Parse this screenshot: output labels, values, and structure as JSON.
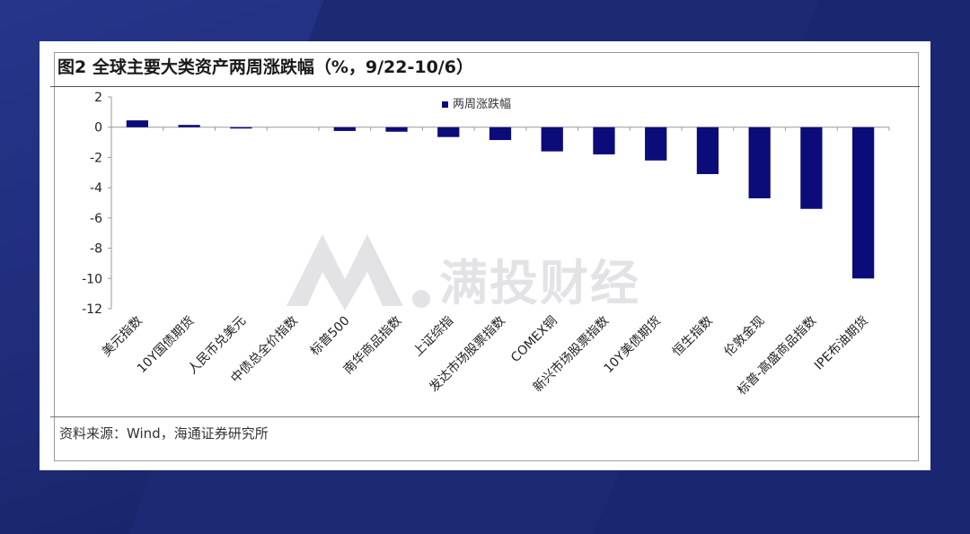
{
  "title": "图2  全球主要大类资产两周涨跌幅（%，9/22-10/6）",
  "source": "资料来源：Wind，海通证券研究所",
  "watermark_text": "满投财经",
  "colors": {
    "bar": "#0b0b7a",
    "axis": "#999999",
    "page_bg": "#1c2a74"
  },
  "chart_data": {
    "type": "bar",
    "categories": [
      "美元指数",
      "10Y国债期货",
      "人民币兑美元",
      "中债总全价指数",
      "标普500",
      "南华商品指数",
      "上证综指",
      "发达市场股票指数",
      "COMEX铜",
      "新兴市场股票指数",
      "10Y美债期货",
      "恒生指数",
      "伦敦金现",
      "标普-高盛商品指数",
      "IPE布油期货"
    ],
    "series": [
      {
        "name": "两周涨跌幅",
        "values": [
          0.45,
          0.15,
          -0.02,
          0.0,
          -0.25,
          -0.3,
          -0.65,
          -0.85,
          -1.6,
          -1.8,
          -2.2,
          -3.1,
          -4.7,
          -5.4,
          -10.0
        ]
      }
    ],
    "yticks": [
      2,
      0,
      -2,
      -4,
      -6,
      -8,
      -10,
      -12
    ],
    "ylim": [
      -12,
      2
    ],
    "legend_position": "top-center",
    "grid": false
  }
}
